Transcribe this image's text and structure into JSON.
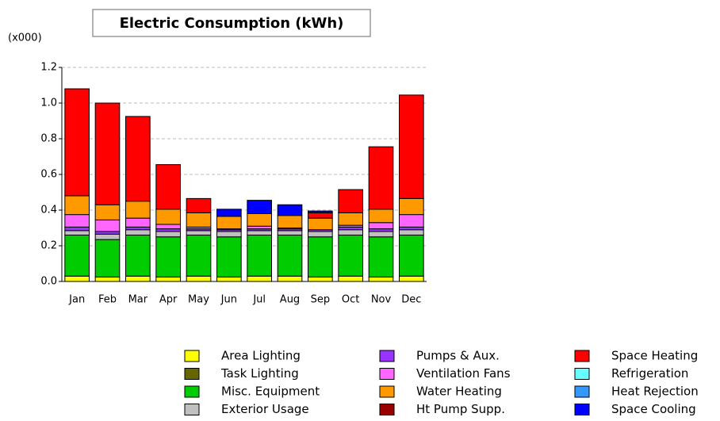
{
  "chart_data": {
    "type": "stacked_bar",
    "title": "Electric Consumption (kWh)",
    "y_unit": "(x000)",
    "categories": [
      "Jan",
      "Feb",
      "Mar",
      "Apr",
      "May",
      "Jun",
      "Jul",
      "Aug",
      "Sep",
      "Oct",
      "Nov",
      "Dec"
    ],
    "ylim": [
      0,
      1.2
    ],
    "yticks": [
      {
        "value": 0,
        "label": "0.0"
      },
      0.2,
      0.4,
      0.6,
      0.8,
      {
        "value": 1,
        "label": "1.0"
      },
      1.2
    ],
    "grid": true,
    "series": [
      {
        "name": "Area Lighting",
        "color": "#ffff00",
        "values": [
          0.03,
          0.025,
          0.03,
          0.025,
          0.03,
          0.025,
          0.03,
          0.03,
          0.025,
          0.03,
          0.025,
          0.03
        ]
      },
      {
        "name": "Task Lighting",
        "color": "#666600",
        "values": [
          0,
          0,
          0,
          0,
          0,
          0,
          0,
          0,
          0,
          0,
          0,
          0
        ]
      },
      {
        "name": "Misc. Equipment",
        "color": "#00cc00",
        "values": [
          0.23,
          0.21,
          0.23,
          0.225,
          0.23,
          0.225,
          0.23,
          0.23,
          0.225,
          0.23,
          0.225,
          0.23
        ]
      },
      {
        "name": "Exterior Usage",
        "color": "#c0c0c0",
        "values": [
          0.025,
          0.03,
          0.03,
          0.03,
          0.025,
          0.03,
          0.025,
          0.025,
          0.03,
          0.03,
          0.03,
          0.03
        ]
      },
      {
        "name": "Pumps & Aux.",
        "color": "#9933ff",
        "values": [
          0.02,
          0.015,
          0.015,
          0.015,
          0.01,
          0.01,
          0.01,
          0.01,
          0.01,
          0.015,
          0.015,
          0.015
        ]
      },
      {
        "name": "Ventilation Fans",
        "color": "#ff66ff",
        "values": [
          0.07,
          0.065,
          0.05,
          0.025,
          0.01,
          0.005,
          0.015,
          0.005,
          0,
          0.01,
          0.035,
          0.07
        ]
      },
      {
        "name": "Water Heating",
        "color": "#ff9900",
        "values": [
          0.105,
          0.085,
          0.095,
          0.085,
          0.08,
          0.07,
          0.07,
          0.07,
          0.065,
          0.07,
          0.075,
          0.09
        ]
      },
      {
        "name": "Ht Pump Supp.",
        "color": "#990000",
        "values": [
          0,
          0,
          0,
          0,
          0,
          0,
          0,
          0,
          0,
          0,
          0,
          0
        ]
      },
      {
        "name": "Space Heating",
        "color": "#ff0000",
        "values": [
          0.6,
          0.57,
          0.475,
          0.25,
          0.08,
          0,
          0,
          0,
          0.03,
          0.13,
          0.35,
          0.58
        ]
      },
      {
        "name": "Refrigeration",
        "color": "#66ffff",
        "values": [
          0,
          0,
          0,
          0,
          0,
          0,
          0,
          0,
          0,
          0,
          0,
          0
        ]
      },
      {
        "name": "Heat Rejection",
        "color": "#3399ff",
        "values": [
          0,
          0,
          0,
          0,
          0,
          0,
          0,
          0,
          0,
          0,
          0,
          0
        ]
      },
      {
        "name": "Space Cooling",
        "color": "#0000ff",
        "values": [
          0,
          0,
          0,
          0,
          0,
          0.04,
          0.075,
          0.06,
          0.01,
          0,
          0,
          0
        ]
      }
    ]
  }
}
